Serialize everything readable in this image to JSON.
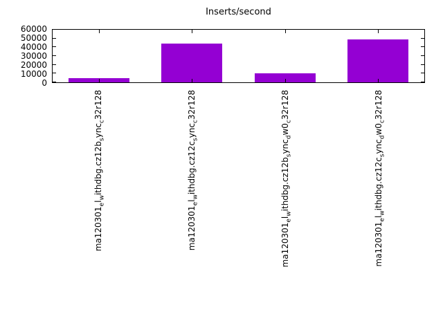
{
  "chart_data": {
    "type": "bar",
    "title": "Inserts/second",
    "categories": [
      "ma120301_el_withdbg.cz12b_sync_c32r128",
      "ma120301_el_withdbg.cz12c_sync_c32r128",
      "ma120301_el_withdbg.cz12b_sync_dw0_c32r128",
      "ma120301_el_withdbg.cz12c_sync_dw0_c32r128"
    ],
    "values": [
      5000,
      44000,
      10500,
      49000
    ],
    "xlabel": "",
    "ylabel": "",
    "ylim": [
      0,
      60000
    ],
    "yticks": [
      0,
      10000,
      20000,
      30000,
      40000,
      50000,
      60000
    ],
    "grid": false,
    "legend": "none",
    "bar_color": "#9400d3",
    "axis_color": "#000000"
  }
}
